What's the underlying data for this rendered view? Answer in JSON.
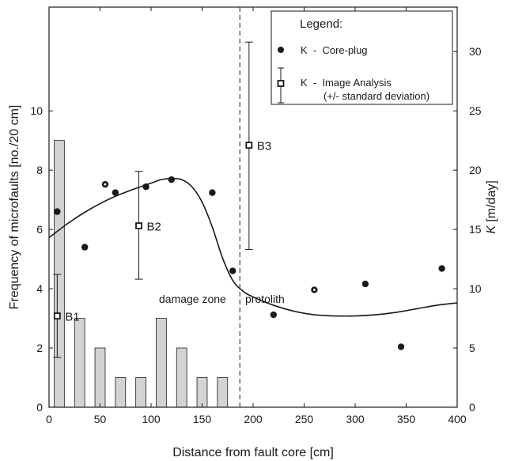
{
  "chart_data": {
    "type": "bar",
    "xlabel": "Distance from fault core [cm]",
    "ylabel_left": "Frequency of microfaults [no./20 cm]",
    "ylabel_right_symbol": "K",
    "ylabel_right_unit": " [m/day]",
    "xlim": [
      0,
      400
    ],
    "ylim_left": [
      0,
      13.5
    ],
    "ylim_right": [
      0,
      33.75
    ],
    "xticks": [
      "0",
      "50",
      "100",
      "150",
      "200",
      "250",
      "300",
      "350",
      "400"
    ],
    "yticks_left": [
      "0",
      "2",
      "4",
      "6",
      "8",
      "10"
    ],
    "yticks_right": [
      "0",
      "5",
      "10",
      "15",
      "20",
      "25",
      "30"
    ],
    "grid": false,
    "bars": {
      "name": "Frequency of microfaults",
      "x": [
        10,
        30,
        50,
        70,
        90,
        110,
        130,
        150,
        170
      ],
      "width": 10,
      "values": [
        9,
        3,
        2,
        1,
        1,
        3,
        2,
        1,
        1
      ],
      "color": "#d3d3d3"
    },
    "core_plug": {
      "name": "K  -  Core-plug",
      "points": [
        {
          "x": 8,
          "y": 16.5
        },
        {
          "x": 35,
          "y": 13.5
        },
        {
          "x": 55,
          "y": 18.8,
          "style": "open-center"
        },
        {
          "x": 65,
          "y": 18.1
        },
        {
          "x": 95,
          "y": 18.6
        },
        {
          "x": 120,
          "y": 19.2
        },
        {
          "x": 160,
          "y": 18.1
        },
        {
          "x": 180,
          "y": 11.5
        },
        {
          "x": 220,
          "y": 7.8
        },
        {
          "x": 260,
          "y": 9.9,
          "style": "open-center"
        },
        {
          "x": 310,
          "y": 10.4
        },
        {
          "x": 345,
          "y": 5.1
        },
        {
          "x": 385,
          "y": 11.7
        }
      ]
    },
    "image_analysis": {
      "name": "K  -  Image Analysis",
      "note": "(+/- standard deviation)",
      "points": [
        {
          "x": 8,
          "y": 7.7,
          "low": 4.2,
          "high": 11.2,
          "label": "B1"
        },
        {
          "x": 88,
          "y": 15.3,
          "low": 10.8,
          "high": 19.9,
          "label": "B2"
        },
        {
          "x": 196,
          "y": 22.1,
          "low": 13.3,
          "high": 30.8,
          "label": "B3"
        }
      ]
    },
    "trend_curve": [
      [
        0,
        14.3
      ],
      [
        20,
        15.6
      ],
      [
        40,
        16.7
      ],
      [
        60,
        17.6
      ],
      [
        80,
        18.3
      ],
      [
        100,
        18.9
      ],
      [
        110,
        19.2
      ],
      [
        120,
        19.3
      ],
      [
        130,
        19.2
      ],
      [
        140,
        18.6
      ],
      [
        150,
        17.3
      ],
      [
        160,
        15.2
      ],
      [
        170,
        12.6
      ],
      [
        180,
        10.7
      ],
      [
        190,
        9.8
      ],
      [
        200,
        9.3
      ],
      [
        220,
        8.6
      ],
      [
        240,
        8.1
      ],
      [
        260,
        7.8
      ],
      [
        280,
        7.7
      ],
      [
        300,
        7.7
      ],
      [
        320,
        7.8
      ],
      [
        340,
        8.0
      ],
      [
        360,
        8.3
      ],
      [
        380,
        8.6
      ],
      [
        400,
        8.8
      ]
    ],
    "divider_x": 187,
    "zone_labels": [
      "damage zone",
      "protolith"
    ],
    "legend": {
      "title": "Legend:",
      "position": "top-right"
    }
  }
}
